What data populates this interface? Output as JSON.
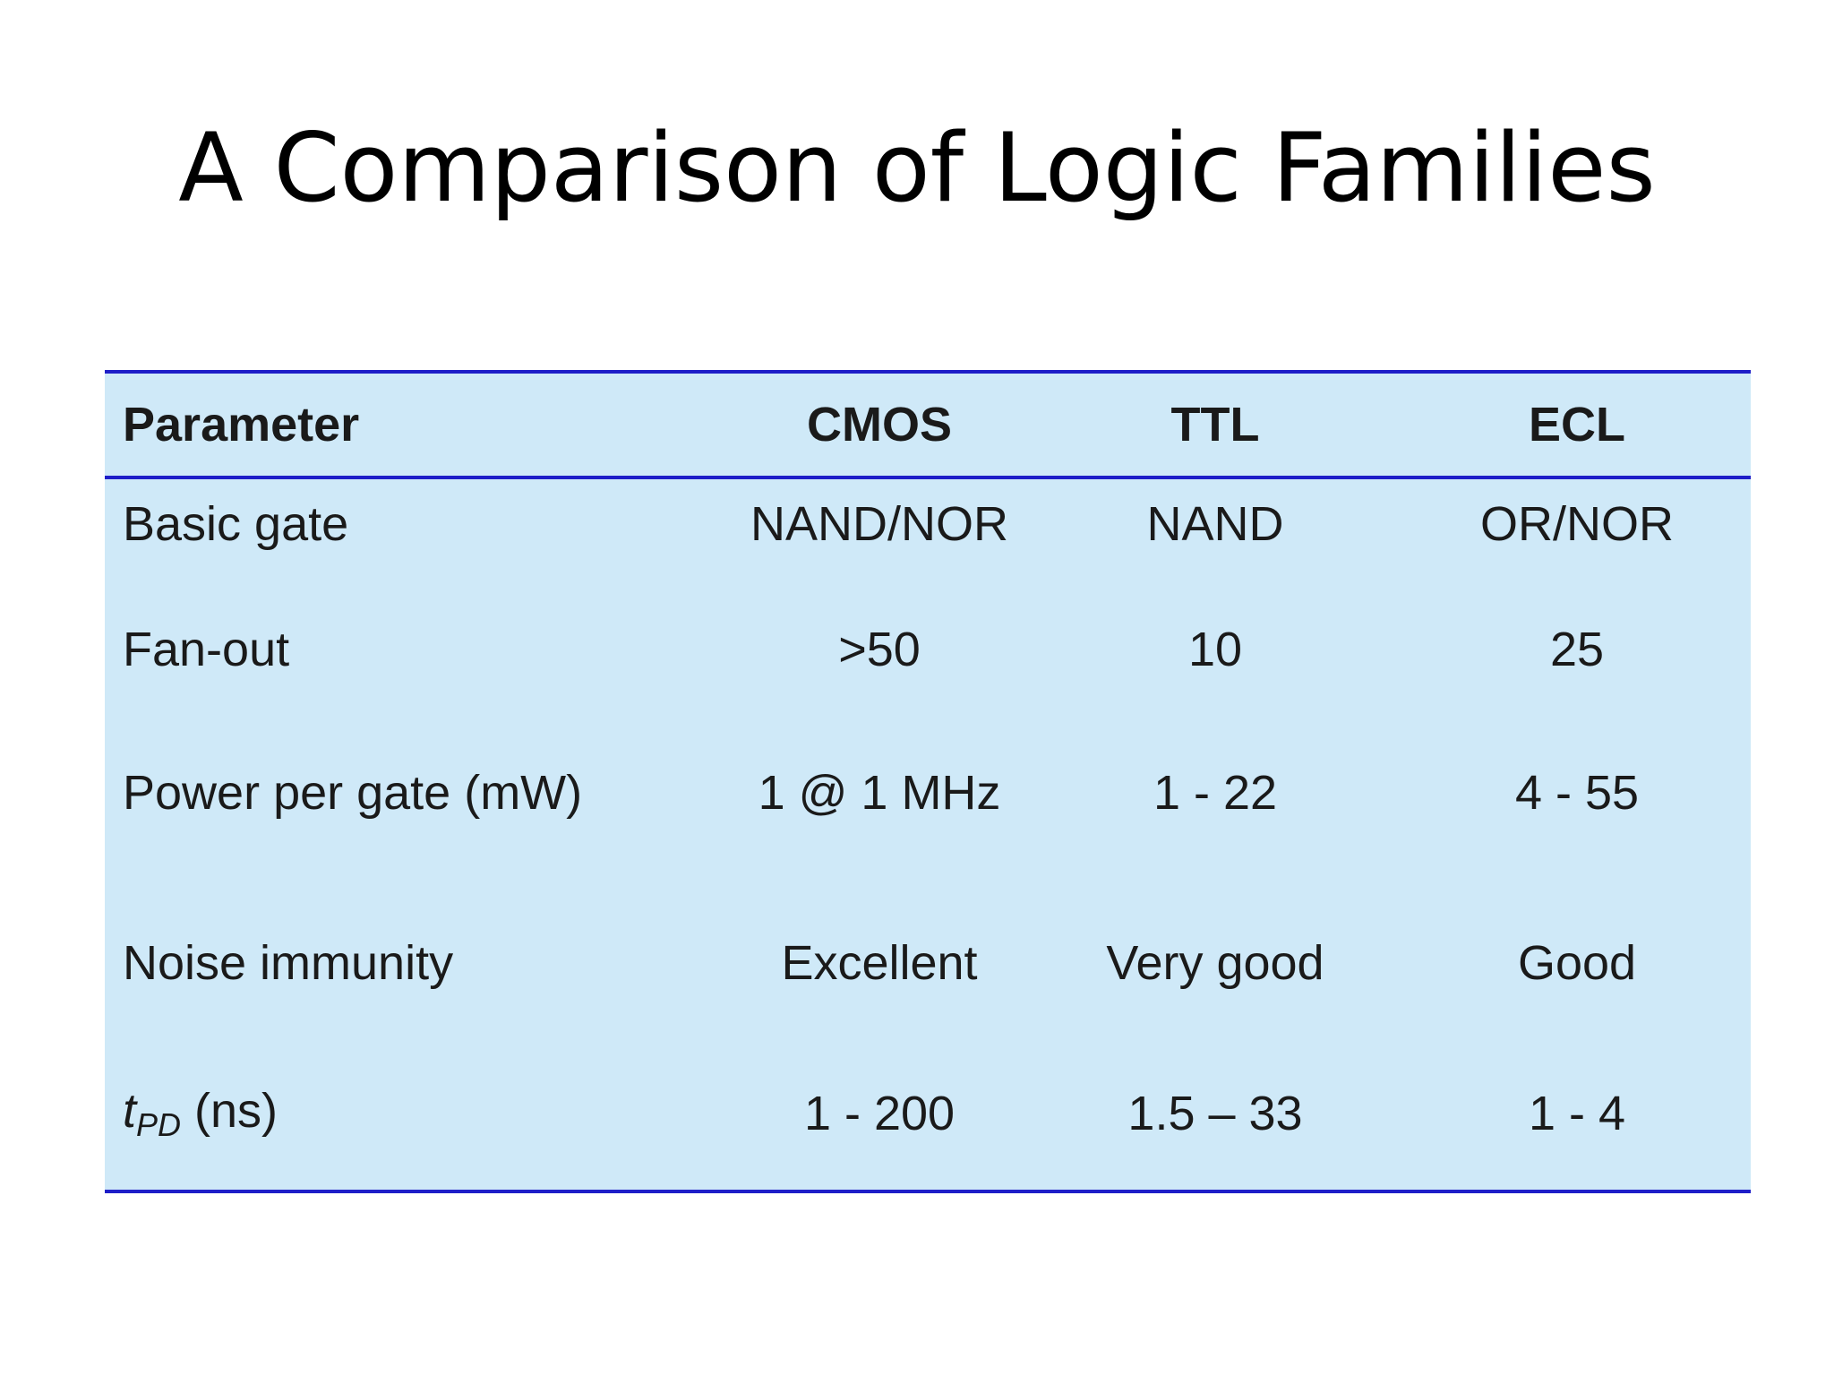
{
  "slide": {
    "title": "A Comparison of Logic Families"
  },
  "table": {
    "headers": {
      "parameter": "Parameter",
      "cmos": "CMOS",
      "ttl": "TTL",
      "ecl": "ECL"
    },
    "rows": [
      {
        "parameter": "Basic gate",
        "cmos": "NAND/NOR",
        "ttl": "NAND",
        "ecl": "OR/NOR"
      },
      {
        "parameter": "Fan-out",
        "cmos": ">50",
        "ttl": "10",
        "ecl": "25"
      },
      {
        "parameter": "Power per gate (mW)",
        "cmos": "1 @ 1 MHz",
        "ttl": "1 - 22",
        "ecl": "4 - 55"
      },
      {
        "parameter": "Noise immunity",
        "cmos": "Excellent",
        "ttl": "Very good",
        "ecl": "Good"
      },
      {
        "parameter_symbol": "t",
        "parameter_subscript": "PD",
        "parameter_unit": "(ns)",
        "cmos": "1 - 200",
        "ttl": "1.5 – 33",
        "ecl": "1 - 4"
      }
    ]
  },
  "colors": {
    "table_background": "#cfe9f8",
    "rule_lines": "#1e1ec8",
    "text": "#1a1a1a"
  }
}
